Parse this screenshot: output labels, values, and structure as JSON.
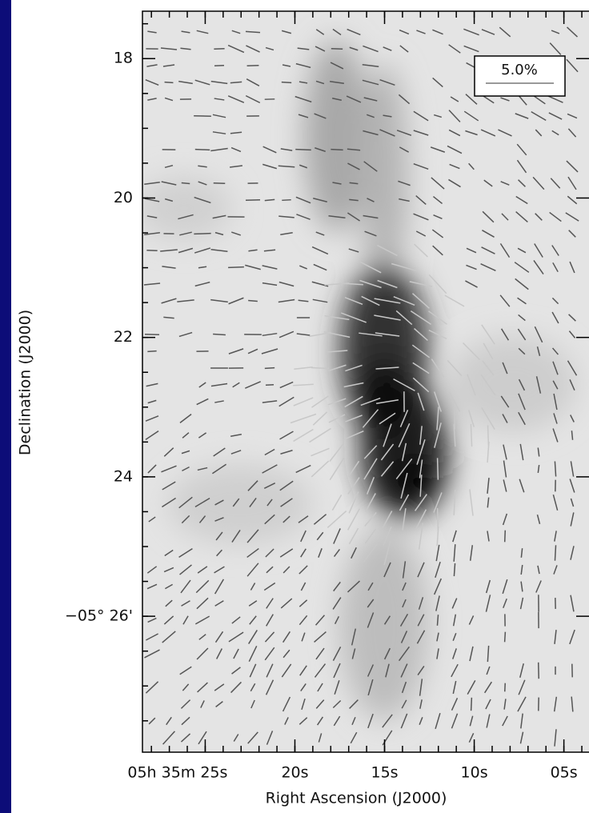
{
  "chart_data": {
    "type": "image",
    "x_label": "Right Ascension (J2000)",
    "y_label": "Declination (J2000)",
    "legend": "5.0%",
    "xlim": [
      28.5,
      3.6
    ],
    "xticks": [
      {
        "value": 25,
        "label": "05h 35m 25s"
      },
      {
        "value": 20,
        "label": "20s"
      },
      {
        "value": 15,
        "label": "15s"
      },
      {
        "value": 10,
        "label": "10s"
      },
      {
        "value": 5,
        "label": "05s"
      }
    ],
    "ylim": [
      17.32,
      27.95
    ],
    "yticks": [
      18,
      20,
      22,
      24,
      {
        "value": 26,
        "label": "−05° 26'"
      }
    ]
  }
}
